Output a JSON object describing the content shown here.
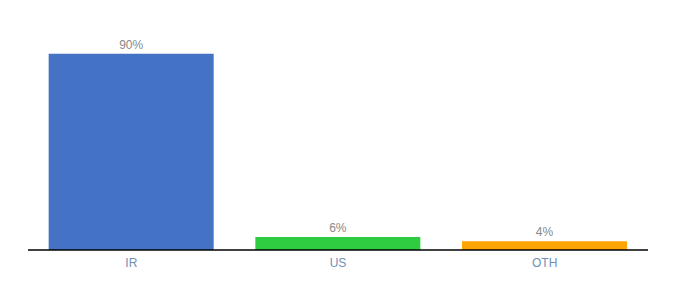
{
  "chart_data": {
    "type": "bar",
    "categories": [
      "IR",
      "US",
      "OTH"
    ],
    "values": [
      90,
      6,
      4
    ],
    "value_labels": [
      "90%",
      "6%",
      "4%"
    ],
    "colors": [
      "#4472C4",
      "#2ECC40",
      "#FFA500"
    ],
    "ylim": [
      0,
      100
    ],
    "data_labels": true,
    "tick_labels": "x",
    "grid": false
  }
}
